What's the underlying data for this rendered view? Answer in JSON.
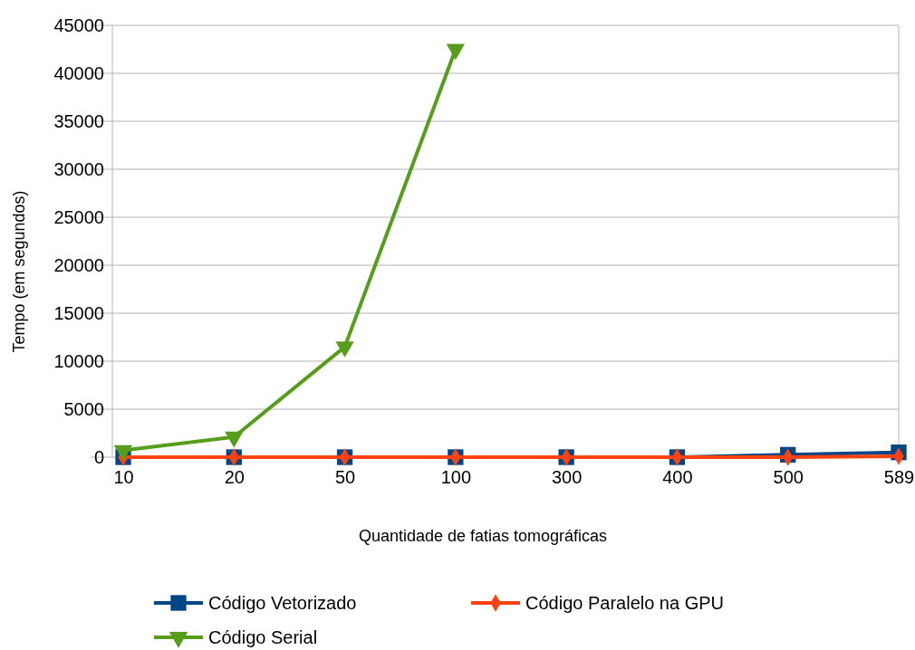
{
  "chart_data": {
    "type": "line",
    "xlabel": "Quantidade de fatias tomográficas",
    "ylabel": "Tempo (em segundos)",
    "categories": [
      "10",
      "20",
      "50",
      "100",
      "300",
      "400",
      "500",
      "589"
    ],
    "ylim": [
      0,
      45000
    ],
    "yticks": [
      0,
      5000,
      10000,
      15000,
      20000,
      25000,
      30000,
      35000,
      40000,
      45000
    ],
    "grid": "y",
    "legend": "bottom",
    "line_style": "solid",
    "series": [
      {
        "name": "Código Vetorizado",
        "color": "#004586",
        "marker": "square",
        "values": [
          0,
          0,
          0,
          0,
          0,
          0,
          250,
          500
        ]
      },
      {
        "name": "Código Paralelo na GPU",
        "color": "#ff420e",
        "marker": "diamond",
        "values": [
          0,
          0,
          0,
          0,
          0,
          0,
          0,
          100
        ]
      },
      {
        "name": "Código Serial",
        "color": "#579d1c",
        "marker": "triangle",
        "values": [
          700,
          2100,
          11500,
          42500,
          null,
          null,
          null,
          null
        ]
      }
    ]
  }
}
